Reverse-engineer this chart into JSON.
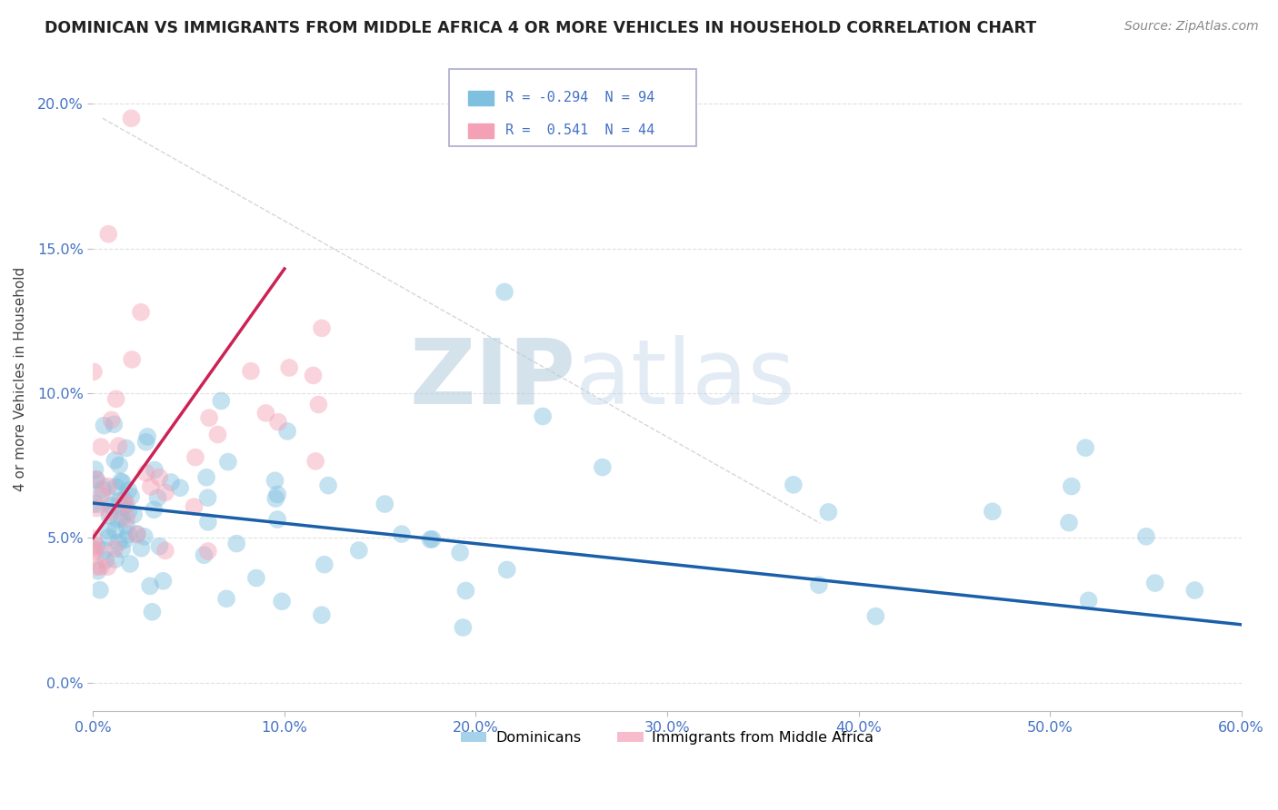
{
  "title": "DOMINICAN VS IMMIGRANTS FROM MIDDLE AFRICA 4 OR MORE VEHICLES IN HOUSEHOLD CORRELATION CHART",
  "source": "Source: ZipAtlas.com",
  "ylabel": "4 or more Vehicles in Household",
  "x_min": 0.0,
  "x_max": 0.6,
  "y_min": -0.01,
  "y_max": 0.22,
  "x_ticks": [
    0.0,
    0.1,
    0.2,
    0.3,
    0.4,
    0.5,
    0.6
  ],
  "x_tick_labels": [
    "0.0%",
    "10.0%",
    "20.0%",
    "30.0%",
    "40.0%",
    "50.0%",
    "60.0%"
  ],
  "y_ticks": [
    0.0,
    0.05,
    0.1,
    0.15,
    0.2
  ],
  "y_tick_labels": [
    "0.0%",
    "5.0%",
    "10.0%",
    "15.0%",
    "20.0%"
  ],
  "dominican_color": "#7fbfdf",
  "immigrant_color": "#f4a0b5",
  "dominican_line_color": "#1a5fa8",
  "immigrant_line_color": "#cc2255",
  "R_dominican": -0.294,
  "N_dominican": 94,
  "R_immigrant": 0.541,
  "N_immigrant": 44,
  "watermark_zip": "ZIP",
  "watermark_atlas": "atlas",
  "legend_labels": [
    "Dominicans",
    "Immigrants from Middle Africa"
  ],
  "background_color": "#ffffff",
  "grid_color": "#e0e0e0",
  "tick_color": "#4472c4",
  "title_color": "#222222",
  "source_color": "#888888"
}
